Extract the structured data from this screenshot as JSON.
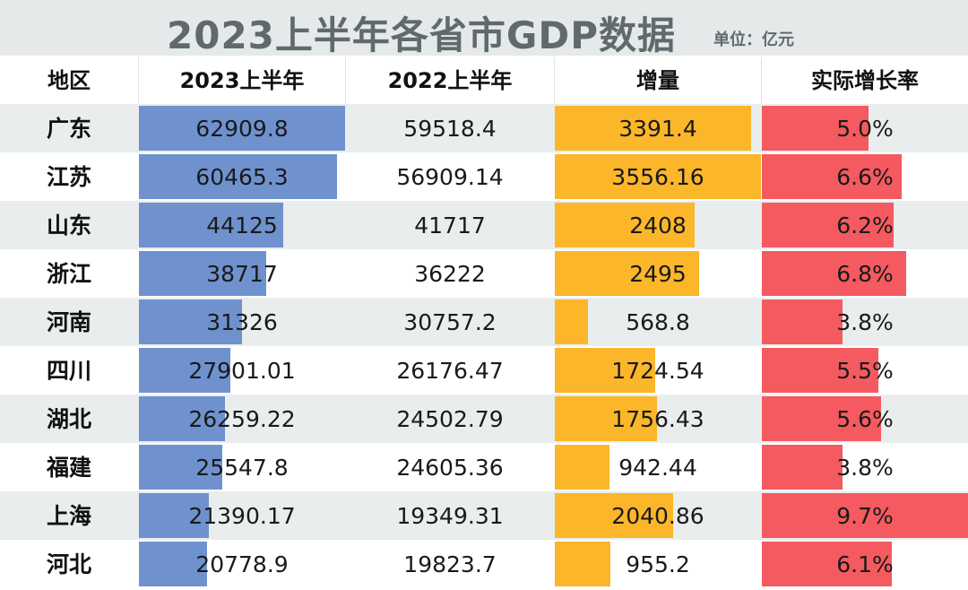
{
  "title": "2023上半年各省市GDP数据",
  "unit": "单位：亿元",
  "columns": [
    "地区",
    "2023上半年",
    "2022上半年",
    "增量",
    "实际增长率"
  ],
  "colors": {
    "gdp2023_bar": "#6f92cf",
    "increase_bar": "#fbb62a",
    "growth_bar": "#f45a5f",
    "title_bg": "#e5e9ea",
    "row_alt_bg": "#e9eded"
  },
  "chart_data": {
    "type": "table",
    "title": "2023上半年各省市GDP数据",
    "unit": "单位：亿元",
    "columns": [
      "地区",
      "2023上半年",
      "2022上半年",
      "增量",
      "实际增长率"
    ],
    "rows": [
      {
        "region": "广东",
        "gdp2023": "62909.8",
        "gdp2022": "59518.4",
        "increase": "3391.4",
        "growth": "5.0%"
      },
      {
        "region": "江苏",
        "gdp2023": "60465.3",
        "gdp2022": "56909.14",
        "increase": "3556.16",
        "growth": "6.6%"
      },
      {
        "region": "山东",
        "gdp2023": "44125",
        "gdp2022": "41717",
        "increase": "2408",
        "growth": "6.2%"
      },
      {
        "region": "浙江",
        "gdp2023": "38717",
        "gdp2022": "36222",
        "increase": "2495",
        "growth": "6.8%"
      },
      {
        "region": "河南",
        "gdp2023": "31326",
        "gdp2022": "30757.2",
        "increase": "568.8",
        "growth": "3.8%"
      },
      {
        "region": "四川",
        "gdp2023": "27901.01",
        "gdp2022": "26176.47",
        "increase": "1724.54",
        "growth": "5.5%"
      },
      {
        "region": "湖北",
        "gdp2023": "26259.22",
        "gdp2022": "24502.79",
        "increase": "1756.43",
        "growth": "5.6%"
      },
      {
        "region": "福建",
        "gdp2023": "25547.8",
        "gdp2022": "24605.36",
        "increase": "942.44",
        "growth": "3.8%"
      },
      {
        "region": "上海",
        "gdp2023": "21390.17",
        "gdp2022": "19349.31",
        "increase": "2040.86",
        "growth": "9.7%"
      },
      {
        "region": "河北",
        "gdp2023": "20778.9",
        "gdp2022": "19823.7",
        "increase": "955.2",
        "growth": "6.1%"
      }
    ]
  }
}
